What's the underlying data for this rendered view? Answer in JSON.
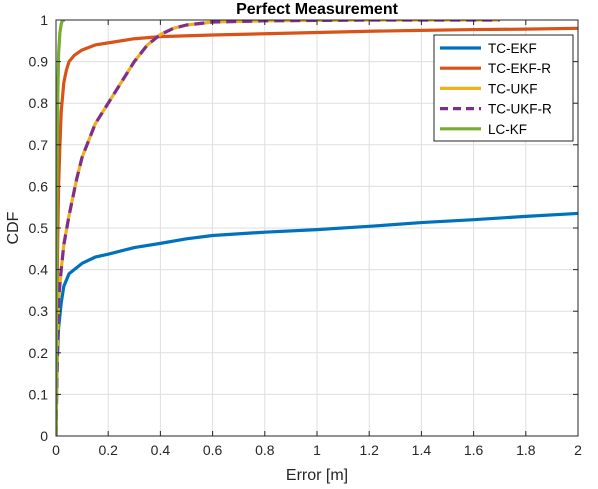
{
  "chart_data": {
    "type": "line",
    "title": "Perfect Measurement",
    "xlabel": "Error [m]",
    "ylabel": "CDF",
    "xlim": [
      0,
      2
    ],
    "ylim": [
      0,
      1
    ],
    "xticks": [
      0,
      0.2,
      0.4,
      0.6,
      0.8,
      1,
      1.2,
      1.4,
      1.6,
      1.8,
      2
    ],
    "xtick_labels": [
      "0",
      "0.2",
      "0.4",
      "0.6",
      "0.8",
      "1",
      "1.2",
      "1.4",
      "1.6",
      "1.8",
      "2"
    ],
    "yticks": [
      0,
      0.1,
      0.2,
      0.3,
      0.4,
      0.5,
      0.6,
      0.7,
      0.8,
      0.9,
      1
    ],
    "ytick_labels": [
      "0",
      "0.1",
      "0.2",
      "0.3",
      "0.4",
      "0.5",
      "0.6",
      "0.7",
      "0.8",
      "0.9",
      "1"
    ],
    "grid": true,
    "legend_position": "top-right",
    "series": [
      {
        "name": "TC-EKF",
        "color": "#0072BD",
        "dash": "solid",
        "points": [
          [
            0,
            0
          ],
          [
            0.002,
            0.1
          ],
          [
            0.005,
            0.18
          ],
          [
            0.01,
            0.26
          ],
          [
            0.02,
            0.32
          ],
          [
            0.03,
            0.36
          ],
          [
            0.05,
            0.39
          ],
          [
            0.08,
            0.405
          ],
          [
            0.1,
            0.415
          ],
          [
            0.15,
            0.43
          ],
          [
            0.2,
            0.437
          ],
          [
            0.3,
            0.453
          ],
          [
            0.4,
            0.463
          ],
          [
            0.5,
            0.474
          ],
          [
            0.6,
            0.482
          ],
          [
            0.8,
            0.49
          ],
          [
            1.0,
            0.496
          ],
          [
            1.2,
            0.504
          ],
          [
            1.4,
            0.513
          ],
          [
            1.6,
            0.52
          ],
          [
            1.8,
            0.528
          ],
          [
            2.0,
            0.535
          ]
        ]
      },
      {
        "name": "TC-EKF-R",
        "color": "#D95319",
        "dash": "solid",
        "points": [
          [
            0,
            0
          ],
          [
            0.003,
            0.25
          ],
          [
            0.006,
            0.45
          ],
          [
            0.01,
            0.6
          ],
          [
            0.015,
            0.7
          ],
          [
            0.02,
            0.78
          ],
          [
            0.03,
            0.85
          ],
          [
            0.04,
            0.88
          ],
          [
            0.05,
            0.9
          ],
          [
            0.07,
            0.915
          ],
          [
            0.1,
            0.928
          ],
          [
            0.15,
            0.94
          ],
          [
            0.2,
            0.945
          ],
          [
            0.3,
            0.955
          ],
          [
            0.4,
            0.96
          ],
          [
            0.6,
            0.964
          ],
          [
            0.8,
            0.967
          ],
          [
            1.0,
            0.97
          ],
          [
            1.2,
            0.973
          ],
          [
            1.4,
            0.975
          ],
          [
            1.6,
            0.977
          ],
          [
            1.8,
            0.978
          ],
          [
            2.0,
            0.98
          ]
        ]
      },
      {
        "name": "TC-UKF",
        "color": "#EDB120",
        "dash": "solid",
        "points": [
          [
            0,
            0
          ],
          [
            0.005,
            0.2
          ],
          [
            0.01,
            0.33
          ],
          [
            0.02,
            0.4
          ],
          [
            0.03,
            0.46
          ],
          [
            0.05,
            0.53
          ],
          [
            0.08,
            0.62
          ],
          [
            0.1,
            0.67
          ],
          [
            0.15,
            0.75
          ],
          [
            0.2,
            0.8
          ],
          [
            0.25,
            0.85
          ],
          [
            0.3,
            0.9
          ],
          [
            0.35,
            0.94
          ],
          [
            0.4,
            0.965
          ],
          [
            0.45,
            0.98
          ],
          [
            0.5,
            0.988
          ],
          [
            0.6,
            0.995
          ],
          [
            0.8,
            0.998
          ],
          [
            1.0,
            0.999
          ],
          [
            1.2,
            1.0
          ],
          [
            1.7,
            1.0
          ]
        ]
      },
      {
        "name": "TC-UKF-R",
        "color": "#7E2F8E",
        "dash": "dashed",
        "points": [
          [
            0,
            0
          ],
          [
            0.005,
            0.2
          ],
          [
            0.01,
            0.33
          ],
          [
            0.02,
            0.4
          ],
          [
            0.03,
            0.46
          ],
          [
            0.05,
            0.53
          ],
          [
            0.08,
            0.62
          ],
          [
            0.1,
            0.67
          ],
          [
            0.15,
            0.75
          ],
          [
            0.2,
            0.8
          ],
          [
            0.25,
            0.85
          ],
          [
            0.3,
            0.9
          ],
          [
            0.35,
            0.94
          ],
          [
            0.4,
            0.965
          ],
          [
            0.45,
            0.98
          ],
          [
            0.5,
            0.988
          ],
          [
            0.6,
            0.995
          ],
          [
            0.8,
            0.998
          ],
          [
            1.0,
            0.999
          ],
          [
            1.2,
            1.0
          ],
          [
            1.7,
            1.0
          ]
        ]
      },
      {
        "name": "LC-KF",
        "color": "#77AC30",
        "dash": "solid",
        "points": [
          [
            0,
            0
          ],
          [
            0.002,
            0.3
          ],
          [
            0.004,
            0.6
          ],
          [
            0.007,
            0.82
          ],
          [
            0.01,
            0.92
          ],
          [
            0.015,
            0.97
          ],
          [
            0.02,
            0.99
          ],
          [
            0.025,
            1.0
          ],
          [
            0.035,
            1.0
          ]
        ]
      }
    ]
  }
}
